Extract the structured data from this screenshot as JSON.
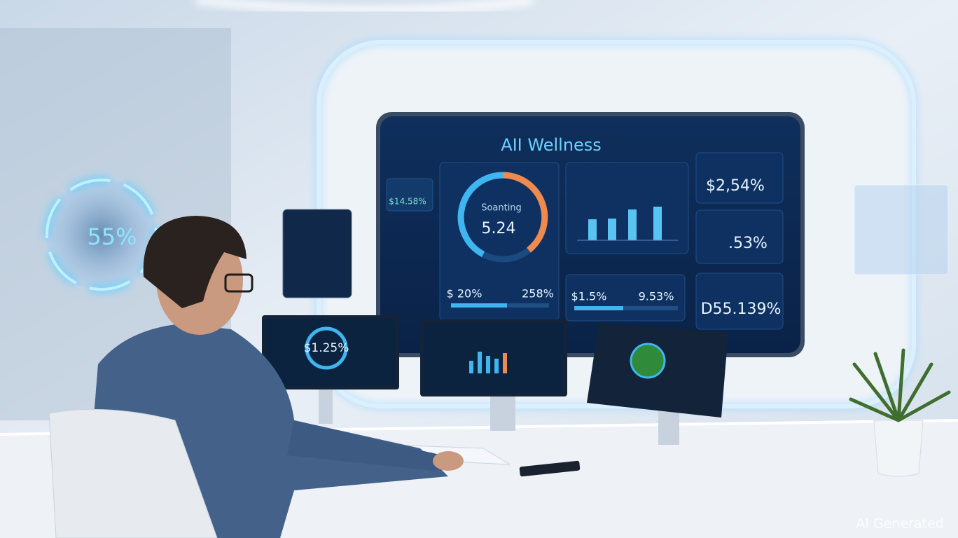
{
  "wall_display": {
    "title": "AII Wellness",
    "gauge": {
      "label": "Soanting",
      "value": "5.24"
    },
    "side_stat": "$14.58%",
    "stats": [
      "$2,54%",
      ".53%",
      "D55.139%"
    ],
    "bottom": [
      "$ 20%",
      "258%",
      "$1.5%",
      "9.53%"
    ]
  },
  "hologram": {
    "value": "55%"
  },
  "monitor": {
    "value": "$1.25%"
  },
  "watermark": "AI Generated"
}
